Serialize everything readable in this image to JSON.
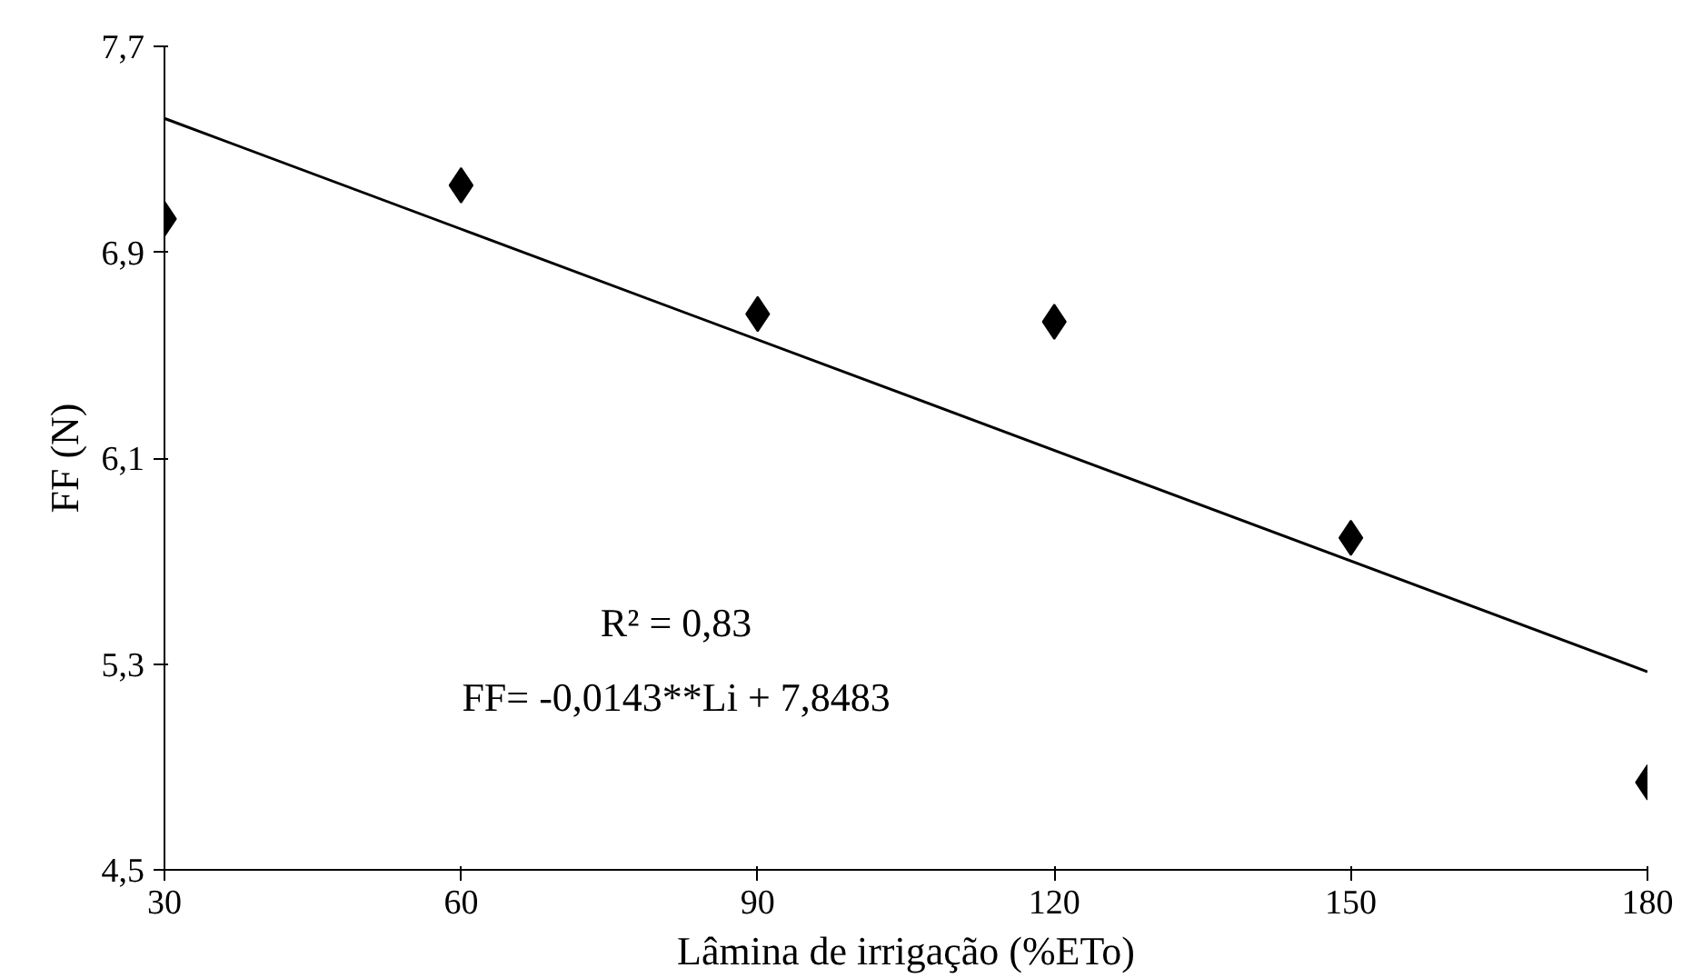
{
  "chart_data": {
    "type": "scatter",
    "xlabel": "Lâmina de irrigação (%ETo)",
    "ylabel": "FF (N)",
    "x": [
      30,
      60,
      90,
      120,
      150,
      180
    ],
    "series": [
      {
        "color": "#000000",
        "marker": "diamond",
        "values": [
          7.03,
          7.16,
          6.66,
          6.63,
          5.79,
          4.84
        ]
      },
      {
        "type": "line",
        "color": "#000000",
        "x": [
          30,
          180
        ],
        "values": [
          7.42,
          5.27
        ],
        "marker": "none",
        "line_style": "solid"
      }
    ],
    "xlim": [
      30,
      180
    ],
    "xticks": [
      30,
      60,
      90,
      120,
      150,
      180
    ],
    "ylim": [
      4.5,
      7.7
    ],
    "yticks": [
      {
        "value": 4.5,
        "label": "4,5"
      },
      {
        "value": 5.3,
        "label": "5,3"
      },
      {
        "value": 6.1,
        "label": "6,1"
      },
      {
        "value": 6.9,
        "label": "6,9"
      },
      {
        "value": 7.7,
        "label": "7,7"
      }
    ],
    "annotations": [
      "R² = 0,83",
      "FF= -0,0143**Li + 7,8483"
    ]
  }
}
